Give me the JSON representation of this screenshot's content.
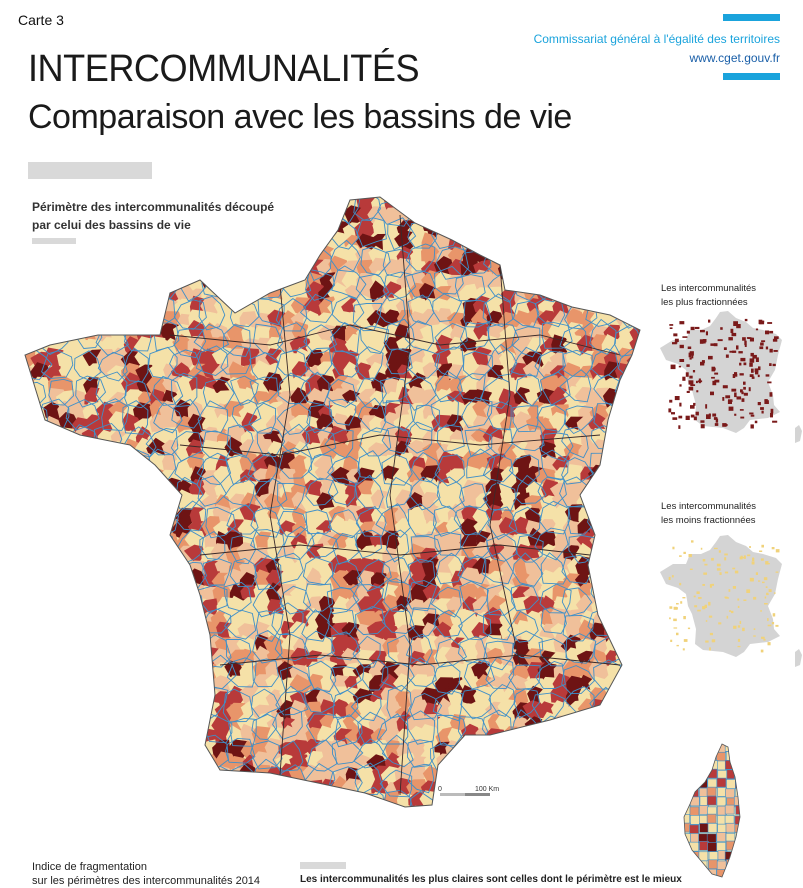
{
  "header": {
    "map_number": "Carte 3",
    "title": "INTERCOMMUNALITÉS",
    "subtitle": "Comparaison avec les bassins de vie"
  },
  "publisher": {
    "name": "Commissariat général à l'égalité des territoires",
    "url": "www.cget.gouv.fr",
    "accent_color": "#1aa3dc"
  },
  "main_map": {
    "title_line1": "Périmètre des intercommunalités découpé",
    "title_line2": "par celui des bassins de vie",
    "palette": [
      "#f5e1a8",
      "#f0c09a",
      "#e8956a",
      "#b83a3a",
      "#6e1414"
    ],
    "boundary_color": "#3f8fc8",
    "scale": {
      "start": "0",
      "end": "100 Km"
    }
  },
  "insets": [
    {
      "caption_line1": "Les intercommunalités",
      "caption_line2": "les plus fractionnées",
      "highlight_color": "#7a1a1a"
    },
    {
      "caption_line1": "Les intercommunalités",
      "caption_line2": "les moins fractionnées",
      "highlight_color": "#f0d27a"
    }
  ],
  "legend": {
    "line1": "Indice de fragmentation",
    "line2": "sur les périmètres des intercommunalités 2014"
  },
  "note": {
    "text": "Les intercommunalités les plus claires sont celles dont le périmètre est le mieux"
  }
}
